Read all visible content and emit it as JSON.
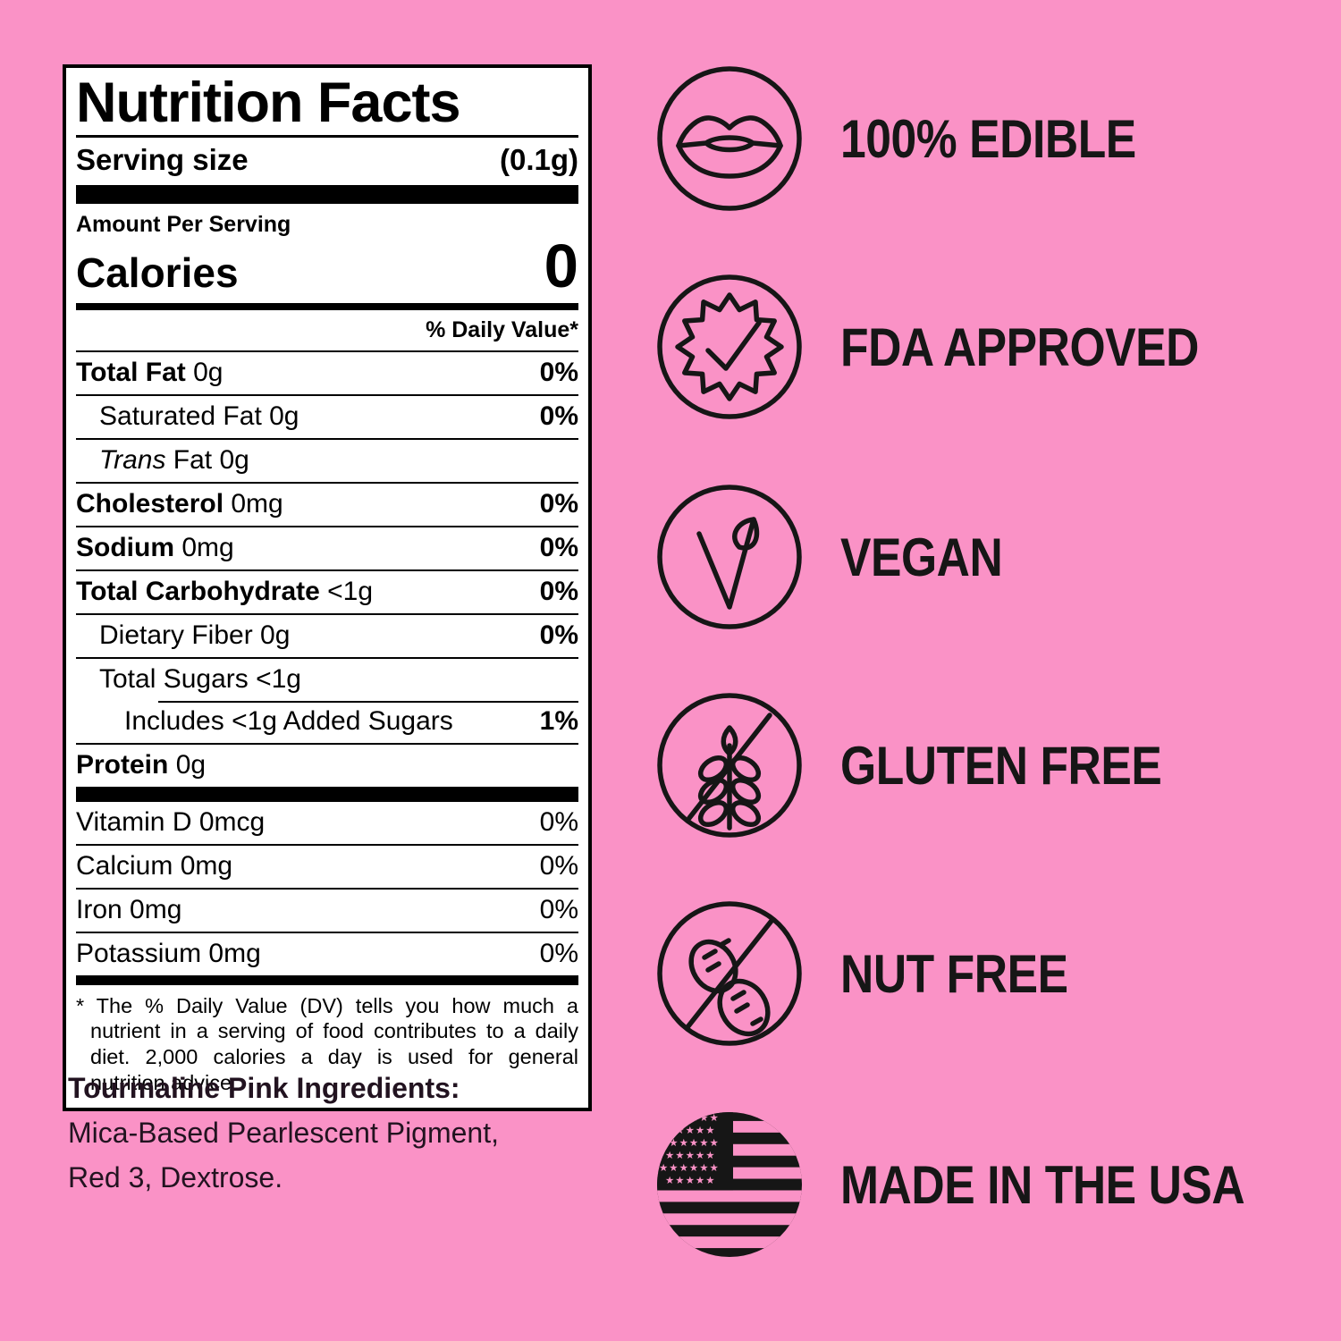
{
  "colors": {
    "background": "#FA92C6",
    "ink": "#161616"
  },
  "label": {
    "title": "Nutrition Facts",
    "serving_size_label": "Serving size",
    "serving_size_value": "(0.1g)",
    "amount_per_serving": "Amount Per Serving",
    "calories_label": "Calories",
    "calories_value": "0",
    "daily_value_header": "% Daily Value*",
    "rows": [
      {
        "name": "Total Fat",
        "amount": "0g",
        "dv": "0%",
        "bold": true,
        "indent": 0,
        "dv_bold": true
      },
      {
        "name": "Saturated Fat",
        "amount": "0g",
        "dv": "0%",
        "indent": 1,
        "dv_bold": true
      },
      {
        "italic": "Trans",
        "name": "Fat",
        "amount": "0g",
        "dv": "",
        "indent": 1
      },
      {
        "name": "Cholesterol",
        "amount": "0mg",
        "dv": "0%",
        "bold": true,
        "indent": 0,
        "dv_bold": true
      },
      {
        "name": "Sodium",
        "amount": "0mg",
        "dv": "0%",
        "bold": true,
        "indent": 0,
        "dv_bold": true
      },
      {
        "name": "Total Carbohydrate",
        "amount": "<1g",
        "dv": "0%",
        "bold": true,
        "indent": 0,
        "dv_bold": true
      },
      {
        "name": "Dietary Fiber",
        "amount": "0g",
        "dv": "0%",
        "indent": 1,
        "dv_bold": true
      },
      {
        "name": "Total Sugars",
        "amount": "<1g",
        "dv": "",
        "indent": 1
      },
      {
        "name": "Includes <1g Added Sugars",
        "amount": "",
        "dv": "1%",
        "indent": 2,
        "dv_bold": true,
        "partial_rule": true
      },
      {
        "name": "Protein",
        "amount": "0g",
        "dv": "",
        "bold": true,
        "indent": 0
      }
    ],
    "vitamins": [
      {
        "name": "Vitamin D",
        "amount": "0mcg",
        "dv": "0%"
      },
      {
        "name": "Calcium",
        "amount": "0mg",
        "dv": "0%"
      },
      {
        "name": "Iron",
        "amount": "0mg",
        "dv": "0%"
      },
      {
        "name": "Potassium",
        "amount": "0mg",
        "dv": "0%"
      }
    ],
    "footnote": "* The % Daily Value (DV) tells you how much a nutrient in a serving of food contributes to a daily diet. 2,000 calories a day is used for general nutrition advice."
  },
  "ingredients": {
    "heading": "Tourmaline Pink Ingredients:",
    "line1": "Mica-Based Pearlescent Pigment,",
    "line2": "Red 3, Dextrose."
  },
  "features": [
    {
      "icon": "lips-icon",
      "label": "100% EDIBLE"
    },
    {
      "icon": "fda-approved-badge-icon",
      "label": "FDA APPROVED"
    },
    {
      "icon": "vegan-v-leaf-icon",
      "label": "VEGAN"
    },
    {
      "icon": "no-gluten-wheat-icon",
      "label": "GLUTEN FREE"
    },
    {
      "icon": "no-nut-peanut-icon",
      "label": "NUT FREE"
    },
    {
      "icon": "usa-flag-icon",
      "label": "MADE IN THE USA"
    }
  ]
}
